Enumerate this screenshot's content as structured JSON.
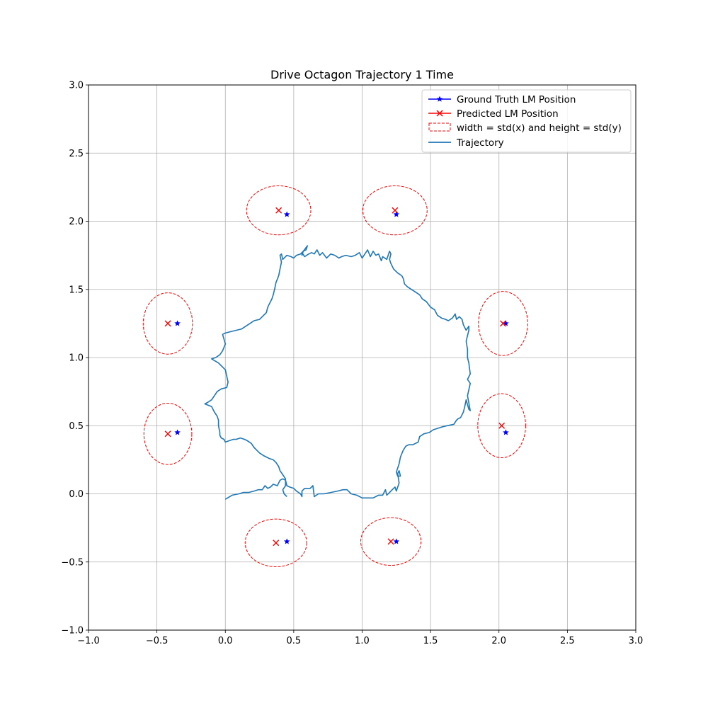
{
  "chart_data": {
    "type": "scatter",
    "title": "Drive Octagon Trajectory 1 Time",
    "xlabel": "",
    "ylabel": "",
    "xlim": [
      -1.0,
      3.0
    ],
    "ylim": [
      -1.0,
      3.0
    ],
    "grid": true,
    "legend_position": "top-right",
    "x_ticks": [
      -1.0,
      -0.5,
      0.0,
      0.5,
      1.0,
      1.5,
      2.0,
      2.5,
      3.0
    ],
    "y_ticks": [
      -1.0,
      -0.5,
      0.0,
      0.5,
      1.0,
      1.5,
      2.0,
      2.5,
      3.0
    ],
    "x_tick_labels": [
      "−1.0",
      "−0.5",
      "0.0",
      "0.5",
      "1.0",
      "1.5",
      "2.0",
      "2.5",
      "3.0"
    ],
    "y_tick_labels": [
      "−1.0",
      "−0.5",
      "0.0",
      "0.5",
      "1.0",
      "1.5",
      "2.0",
      "2.5",
      "3.0"
    ],
    "series": [
      {
        "name": "Ground Truth LM Position",
        "kind": "markers",
        "marker": "star",
        "color": "#0000ff",
        "points": [
          [
            0.45,
            2.05
          ],
          [
            1.25,
            2.05
          ],
          [
            -0.35,
            1.25
          ],
          [
            2.05,
            1.25
          ],
          [
            -0.35,
            0.45
          ],
          [
            2.05,
            0.45
          ],
          [
            0.45,
            -0.35
          ],
          [
            1.25,
            -0.35
          ]
        ]
      },
      {
        "name": "Predicted LM Position",
        "kind": "markers",
        "marker": "x",
        "color": "#ff0000",
        "points": [
          [
            0.39,
            2.08
          ],
          [
            1.24,
            2.08
          ],
          [
            -0.42,
            1.25
          ],
          [
            2.03,
            1.25
          ],
          [
            -0.42,
            0.44
          ],
          [
            2.02,
            0.5
          ],
          [
            0.37,
            -0.36
          ],
          [
            1.21,
            -0.35
          ]
        ]
      },
      {
        "name": "width = std(x) and height = std(y)",
        "kind": "ellipses",
        "color": "#ff0000",
        "ellipses": [
          {
            "cx": 0.39,
            "cy": 2.08,
            "w": 0.47,
            "h": 0.36
          },
          {
            "cx": 1.24,
            "cy": 2.08,
            "w": 0.47,
            "h": 0.36
          },
          {
            "cx": -0.42,
            "cy": 1.25,
            "w": 0.36,
            "h": 0.45
          },
          {
            "cx": 2.03,
            "cy": 1.25,
            "w": 0.36,
            "h": 0.47
          },
          {
            "cx": -0.42,
            "cy": 0.44,
            "w": 0.35,
            "h": 0.45
          },
          {
            "cx": 2.02,
            "cy": 0.5,
            "w": 0.35,
            "h": 0.47
          },
          {
            "cx": 0.37,
            "cy": -0.36,
            "w": 0.45,
            "h": 0.35
          },
          {
            "cx": 1.21,
            "cy": -0.35,
            "w": 0.44,
            "h": 0.35
          }
        ]
      },
      {
        "name": "Trajectory",
        "kind": "line",
        "color": "#1f77b4",
        "points": [
          [
            0.0,
            -0.04
          ],
          [
            0.05,
            -0.01
          ],
          [
            0.1,
            0.0
          ],
          [
            0.13,
            0.01
          ],
          [
            0.17,
            0.01
          ],
          [
            0.21,
            0.02
          ],
          [
            0.24,
            0.03
          ],
          [
            0.27,
            0.03
          ],
          [
            0.29,
            0.06
          ],
          [
            0.31,
            0.04
          ],
          [
            0.33,
            0.05
          ],
          [
            0.35,
            0.07
          ],
          [
            0.38,
            0.06
          ],
          [
            0.4,
            0.1
          ],
          [
            0.42,
            0.11
          ],
          [
            0.44,
            0.1
          ],
          [
            0.45,
            0.06
          ],
          [
            0.47,
            0.05
          ],
          [
            0.5,
            0.04
          ],
          [
            0.52,
            0.02
          ],
          [
            0.55,
            0.0
          ],
          [
            0.56,
            -0.02
          ],
          [
            0.56,
            0.02
          ],
          [
            0.58,
            0.04
          ],
          [
            0.62,
            0.04
          ],
          [
            0.64,
            0.06
          ],
          [
            0.65,
            -0.02
          ],
          [
            0.68,
            0.0
          ],
          [
            0.72,
            0.0
          ],
          [
            0.77,
            0.01
          ],
          [
            0.82,
            0.02
          ],
          [
            0.86,
            0.03
          ],
          [
            0.89,
            0.03
          ],
          [
            0.92,
            0.0
          ],
          [
            0.96,
            -0.01
          ],
          [
            1.0,
            -0.03
          ],
          [
            1.04,
            -0.03
          ],
          [
            1.08,
            -0.03
          ],
          [
            1.12,
            -0.01
          ],
          [
            1.15,
            -0.01
          ],
          [
            1.17,
            0.03
          ],
          [
            1.18,
            -0.01
          ],
          [
            1.2,
            0.01
          ],
          [
            1.22,
            0.03
          ],
          [
            1.24,
            0.05
          ],
          [
            1.25,
            0.02
          ],
          [
            1.27,
            0.08
          ],
          [
            1.26,
            0.15
          ],
          [
            1.27,
            0.17
          ],
          [
            1.28,
            0.13
          ],
          [
            1.26,
            0.13
          ],
          [
            1.25,
            0.16
          ],
          [
            1.27,
            0.22
          ],
          [
            1.28,
            0.27
          ],
          [
            1.3,
            0.32
          ],
          [
            1.32,
            0.35
          ],
          [
            1.34,
            0.36
          ],
          [
            1.37,
            0.36
          ],
          [
            1.41,
            0.38
          ],
          [
            1.42,
            0.42
          ],
          [
            1.45,
            0.44
          ],
          [
            1.49,
            0.45
          ],
          [
            1.52,
            0.47
          ],
          [
            1.55,
            0.48
          ],
          [
            1.58,
            0.49
          ],
          [
            1.62,
            0.5
          ],
          [
            1.67,
            0.51
          ],
          [
            1.69,
            0.54
          ],
          [
            1.7,
            0.55
          ],
          [
            1.72,
            0.56
          ],
          [
            1.74,
            0.6
          ],
          [
            1.75,
            0.64
          ],
          [
            1.76,
            0.69
          ],
          [
            1.78,
            0.62
          ],
          [
            1.79,
            0.61
          ],
          [
            1.77,
            0.72
          ],
          [
            1.79,
            0.81
          ],
          [
            1.77,
            0.84
          ],
          [
            1.79,
            0.88
          ],
          [
            1.78,
            0.96
          ],
          [
            1.77,
            1.0
          ],
          [
            1.77,
            1.06
          ],
          [
            1.76,
            1.12
          ],
          [
            1.77,
            1.16
          ],
          [
            1.78,
            1.2
          ],
          [
            1.78,
            1.23
          ],
          [
            1.76,
            1.2
          ],
          [
            1.74,
            1.24
          ],
          [
            1.73,
            1.28
          ],
          [
            1.71,
            1.3
          ],
          [
            1.69,
            1.28
          ],
          [
            1.68,
            1.32
          ],
          [
            1.66,
            1.29
          ],
          [
            1.63,
            1.27
          ],
          [
            1.61,
            1.28
          ],
          [
            1.58,
            1.29
          ],
          [
            1.55,
            1.31
          ],
          [
            1.53,
            1.35
          ],
          [
            1.5,
            1.37
          ],
          [
            1.47,
            1.41
          ],
          [
            1.44,
            1.43
          ],
          [
            1.42,
            1.46
          ],
          [
            1.39,
            1.48
          ],
          [
            1.36,
            1.5
          ],
          [
            1.33,
            1.52
          ],
          [
            1.31,
            1.54
          ],
          [
            1.3,
            1.58
          ],
          [
            1.29,
            1.6
          ],
          [
            1.26,
            1.62
          ],
          [
            1.23,
            1.65
          ],
          [
            1.21,
            1.69
          ],
          [
            1.2,
            1.72
          ],
          [
            1.21,
            1.76
          ],
          [
            1.2,
            1.78
          ],
          [
            1.18,
            1.72
          ],
          [
            1.15,
            1.74
          ],
          [
            1.14,
            1.71
          ],
          [
            1.12,
            1.76
          ],
          [
            1.1,
            1.75
          ],
          [
            1.08,
            1.78
          ],
          [
            1.06,
            1.74
          ],
          [
            1.04,
            1.79
          ],
          [
            1.02,
            1.76
          ],
          [
            1.0,
            1.73
          ],
          [
            0.98,
            1.77
          ],
          [
            0.95,
            1.75
          ],
          [
            0.92,
            1.74
          ],
          [
            0.88,
            1.75
          ],
          [
            0.85,
            1.74
          ],
          [
            0.83,
            1.73
          ],
          [
            0.8,
            1.75
          ],
          [
            0.77,
            1.76
          ],
          [
            0.74,
            1.73
          ],
          [
            0.71,
            1.77
          ],
          [
            0.69,
            1.75
          ],
          [
            0.67,
            1.79
          ],
          [
            0.65,
            1.76
          ],
          [
            0.63,
            1.77
          ],
          [
            0.61,
            1.76
          ],
          [
            0.58,
            1.74
          ],
          [
            0.56,
            1.77
          ],
          [
            0.56,
            1.75
          ],
          [
            0.57,
            1.78
          ],
          [
            0.59,
            1.79
          ],
          [
            0.6,
            1.82
          ],
          [
            0.57,
            1.78
          ],
          [
            0.55,
            1.76
          ],
          [
            0.52,
            1.75
          ],
          [
            0.5,
            1.73
          ],
          [
            0.48,
            1.74
          ],
          [
            0.45,
            1.75
          ],
          [
            0.42,
            1.72
          ],
          [
            0.41,
            1.76
          ],
          [
            0.4,
            1.75
          ],
          [
            0.41,
            1.7
          ],
          [
            0.4,
            1.65
          ],
          [
            0.39,
            1.6
          ],
          [
            0.37,
            1.55
          ],
          [
            0.36,
            1.5
          ],
          [
            0.35,
            1.46
          ],
          [
            0.34,
            1.43
          ],
          [
            0.33,
            1.41
          ],
          [
            0.31,
            1.37
          ],
          [
            0.3,
            1.33
          ],
          [
            0.27,
            1.3
          ],
          [
            0.25,
            1.28
          ],
          [
            0.21,
            1.27
          ],
          [
            0.18,
            1.25
          ],
          [
            0.15,
            1.23
          ],
          [
            0.12,
            1.21
          ],
          [
            0.08,
            1.2
          ],
          [
            0.04,
            1.19
          ],
          [
            0.0,
            1.18
          ],
          [
            -0.02,
            1.17
          ],
          [
            0.0,
            1.1
          ],
          [
            -0.02,
            1.05
          ],
          [
            -0.04,
            1.02
          ],
          [
            -0.07,
            1.0
          ],
          [
            -0.1,
            0.99
          ],
          [
            -0.05,
            0.96
          ],
          [
            0.0,
            0.91
          ],
          [
            0.02,
            0.82
          ],
          [
            0.01,
            0.78
          ],
          [
            -0.03,
            0.77
          ],
          [
            -0.06,
            0.75
          ],
          [
            -0.08,
            0.72
          ],
          [
            -0.1,
            0.69
          ],
          [
            -0.13,
            0.67
          ],
          [
            -0.15,
            0.66
          ],
          [
            -0.1,
            0.64
          ],
          [
            -0.08,
            0.6
          ],
          [
            -0.06,
            0.57
          ],
          [
            -0.05,
            0.54
          ],
          [
            -0.05,
            0.5
          ],
          [
            -0.04,
            0.45
          ],
          [
            -0.04,
            0.43
          ],
          [
            -0.03,
            0.41
          ],
          [
            -0.01,
            0.4
          ],
          [
            0.0,
            0.38
          ],
          [
            0.03,
            0.39
          ],
          [
            0.06,
            0.4
          ],
          [
            0.08,
            0.4
          ],
          [
            0.11,
            0.41
          ],
          [
            0.14,
            0.4
          ],
          [
            0.16,
            0.39
          ],
          [
            0.19,
            0.37
          ],
          [
            0.21,
            0.34
          ],
          [
            0.23,
            0.32
          ],
          [
            0.25,
            0.3
          ],
          [
            0.28,
            0.28
          ],
          [
            0.3,
            0.27
          ],
          [
            0.32,
            0.26
          ],
          [
            0.35,
            0.25
          ],
          [
            0.37,
            0.23
          ],
          [
            0.39,
            0.2
          ],
          [
            0.4,
            0.17
          ],
          [
            0.42,
            0.14
          ],
          [
            0.44,
            0.11
          ],
          [
            0.44,
            0.06
          ],
          [
            0.42,
            0.03
          ],
          [
            0.43,
            0.0
          ],
          [
            0.45,
            -0.02
          ]
        ]
      }
    ]
  }
}
